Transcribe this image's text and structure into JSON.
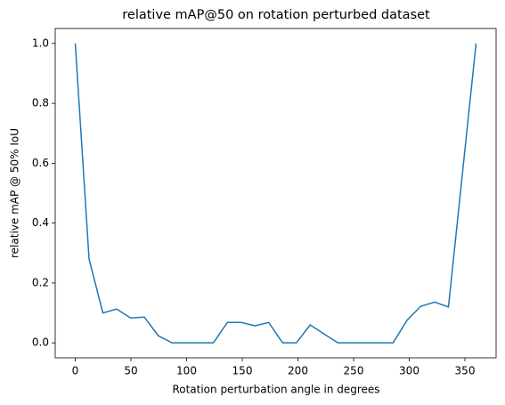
{
  "chart_data": {
    "type": "line",
    "title": "relative mAP@50 on rotation perturbed dataset",
    "x_label": "Rotation perturbation angle in degrees",
    "y_label": "relative mAP @ 50% IoU",
    "x": [
      0,
      12.4,
      24.8,
      37.2,
      49.7,
      62.1,
      74.5,
      86.9,
      99.3,
      111.7,
      124.1,
      136.6,
      149.0,
      161.4,
      173.8,
      186.2,
      198.6,
      211.0,
      223.4,
      235.9,
      248.3,
      260.7,
      273.1,
      285.5,
      297.9,
      310.3,
      322.8,
      335.2,
      347.6,
      360
    ],
    "series": [
      {
        "name": "relative mAP",
        "color": "#1f77b4",
        "values": [
          1.0,
          0.28,
          0.1,
          0.113,
          0.083,
          0.086,
          0.024,
          0,
          0,
          0,
          0,
          0.068,
          0.068,
          0.057,
          0.068,
          0,
          0,
          0.06,
          0.03,
          0,
          0,
          0,
          0,
          0,
          0.075,
          0.122,
          0.136,
          0.12,
          0.56,
          1.0
        ]
      }
    ],
    "xlim": [
      -18,
      378
    ],
    "xticks": [
      0,
      50,
      100,
      150,
      200,
      250,
      300,
      350
    ],
    "ylim": [
      -0.05,
      1.05
    ],
    "yticks": [
      {
        "value": 0,
        "label": "0.0"
      },
      0.2,
      0.4,
      0.6,
      0.8,
      {
        "value": 1,
        "label": "1.0"
      }
    ],
    "grid": false
  }
}
